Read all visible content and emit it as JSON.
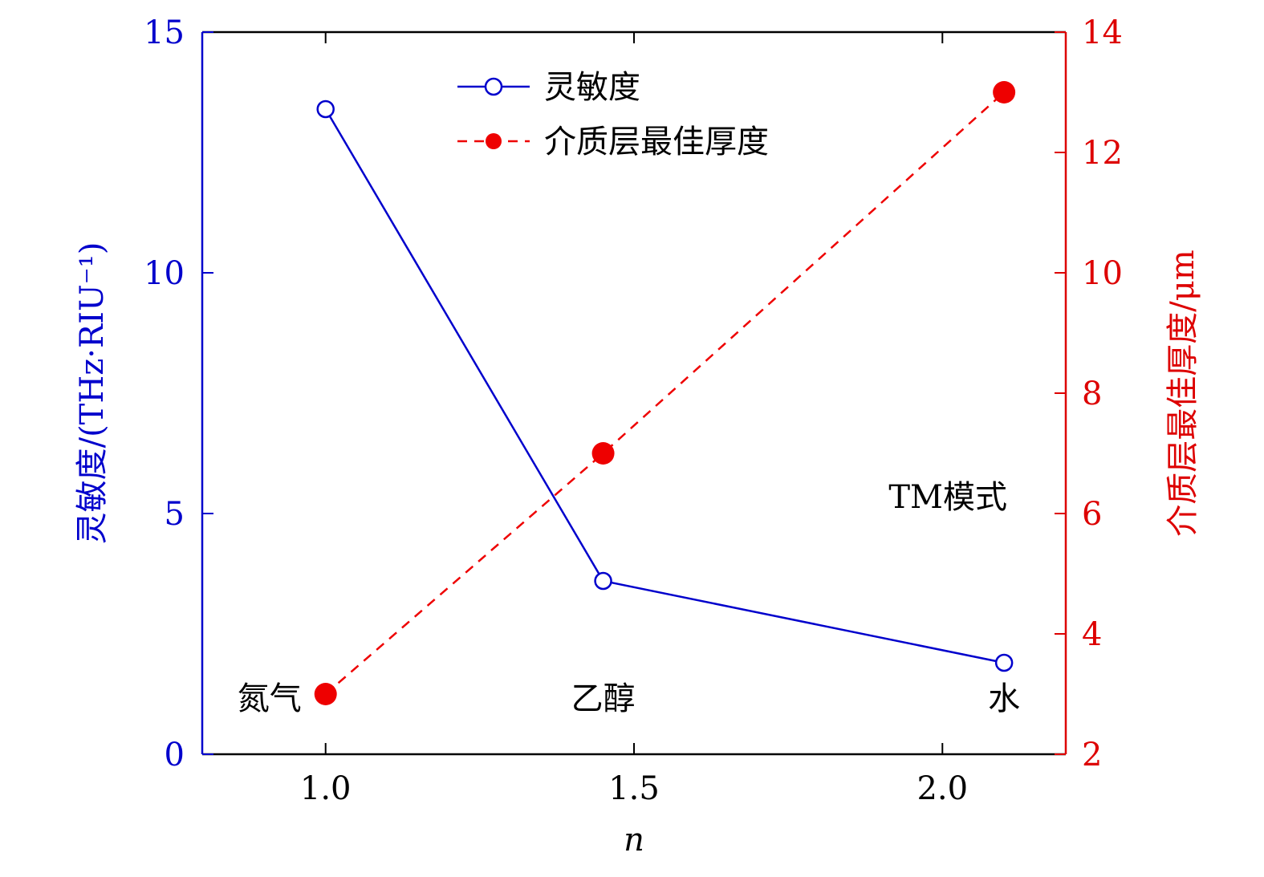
{
  "chart_data": {
    "type": "line",
    "xlabel": "n",
    "xlim": [
      0.8,
      2.2
    ],
    "xticks": [
      1.0,
      1.5,
      2.0
    ],
    "xtick_labels": [
      "1.0",
      "1.5",
      "2.0"
    ],
    "y_left": {
      "label": "灵敏度/(THz·RIU⁻¹)",
      "lim": [
        0,
        15
      ],
      "ticks": [
        0,
        5,
        10,
        15
      ],
      "tick_labels": [
        "0",
        "5",
        "10",
        "15"
      ],
      "color": "#0000cc"
    },
    "y_right": {
      "label": "介质层最佳厚度/μm",
      "lim": [
        2,
        14
      ],
      "ticks": [
        2,
        4,
        6,
        8,
        10,
        12,
        14
      ],
      "tick_labels": [
        "2",
        "4",
        "6",
        "8",
        "10",
        "12",
        "14"
      ],
      "color": "#dd0000"
    },
    "series": [
      {
        "name": "灵敏度",
        "axis": "left",
        "style": "solid-open-circle",
        "color": "#0000cc",
        "x": [
          1.0,
          1.45,
          2.1
        ],
        "values": [
          13.4,
          3.6,
          1.9
        ]
      },
      {
        "name": "介质层最佳厚度",
        "axis": "right",
        "style": "dashed-filled-circle",
        "color": "#ee0000",
        "x": [
          1.0,
          1.45,
          2.1
        ],
        "values": [
          3.0,
          7.0,
          13.0
        ]
      }
    ],
    "annotations": [
      {
        "text": "氮气",
        "x": 1.0,
        "anchor": "end"
      },
      {
        "text": "乙醇",
        "x": 1.45,
        "anchor": "middle"
      },
      {
        "text": "水",
        "x": 2.1,
        "anchor": "middle"
      }
    ],
    "mode_label": "TM模式",
    "legend": "top-center"
  }
}
